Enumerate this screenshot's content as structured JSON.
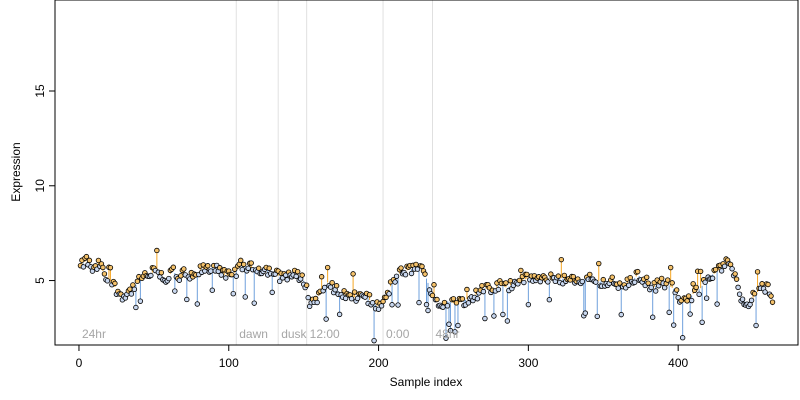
{
  "chart_data": {
    "type": "scatter",
    "title": "",
    "xlabel": "Sample index",
    "ylabel": "Expression",
    "xlim": [
      -16,
      480
    ],
    "ylim": [
      1.6,
      19.8
    ],
    "x_ticks": [
      0,
      100,
      200,
      300,
      400
    ],
    "y_ticks": [
      5,
      10,
      15
    ],
    "grid": false,
    "colors": {
      "above_baseline_stem": "#f5a623",
      "below_baseline_stem": "#6fa0dc",
      "above_point_fill": "#f5c26b",
      "below_point_fill": "#c9d8f0",
      "point_outline": "#000000",
      "separator": "#e0e0e0",
      "region_label": "#a6a6a6"
    },
    "regions": [
      {
        "label": "24hr",
        "start": 0
      },
      {
        "label": "dawn",
        "start": 105
      },
      {
        "label": "dusk",
        "start": 133
      },
      {
        "label": "12:00",
        "start": 152
      },
      {
        "label": "0:00",
        "start": 203
      },
      {
        "label": "48hr",
        "start": 236
      }
    ],
    "series": [
      {
        "anchors": [
          [
            1,
            5.7
          ],
          [
            5,
            6.1
          ],
          [
            10,
            5.5
          ],
          [
            14,
            5.9
          ],
          [
            18,
            5.1
          ],
          [
            22,
            4.9
          ],
          [
            27,
            4.3
          ],
          [
            31,
            4.2
          ],
          [
            36,
            4.6
          ],
          [
            42,
            5.1
          ],
          [
            47,
            5.3
          ],
          [
            52,
            5.6
          ],
          [
            58,
            5.0
          ],
          [
            63,
            5.6
          ],
          [
            66,
            5.0
          ],
          [
            70,
            5.4
          ],
          [
            76,
            5.1
          ],
          [
            82,
            5.6
          ],
          [
            87,
            5.6
          ],
          [
            92,
            5.8
          ],
          [
            97,
            5.3
          ],
          [
            102,
            5.2
          ],
          [
            108,
            5.8
          ],
          [
            113,
            5.7
          ],
          [
            118,
            5.6
          ],
          [
            124,
            5.6
          ],
          [
            129,
            5.5
          ],
          [
            134,
            5.2
          ],
          [
            138,
            5.3
          ],
          [
            143,
            5.3
          ],
          [
            148,
            5.2
          ],
          [
            151,
            4.9
          ],
          [
            154,
            3.8
          ],
          [
            158,
            4.0
          ],
          [
            162,
            4.4
          ],
          [
            166,
            4.9
          ],
          [
            170,
            4.6
          ],
          [
            176,
            4.3
          ],
          [
            180,
            4.2
          ],
          [
            185,
            4.1
          ],
          [
            190,
            4.3
          ],
          [
            195,
            3.9
          ],
          [
            200,
            3.6
          ],
          [
            204,
            3.9
          ],
          [
            208,
            4.7
          ],
          [
            212,
            5.3
          ],
          [
            217,
            5.5
          ],
          [
            222,
            5.6
          ],
          [
            227,
            5.8
          ],
          [
            232,
            5.1
          ],
          [
            236,
            4.2
          ],
          [
            241,
            3.7
          ],
          [
            246,
            3.9
          ],
          [
            251,
            3.8
          ],
          [
            256,
            3.9
          ],
          [
            261,
            4.1
          ],
          [
            266,
            4.3
          ],
          [
            271,
            4.6
          ],
          [
            276,
            4.4
          ],
          [
            281,
            4.8
          ],
          [
            286,
            4.6
          ],
          [
            291,
            5.0
          ],
          [
            296,
            5.0
          ],
          [
            302,
            5.2
          ],
          [
            308,
            5.0
          ],
          [
            313,
            5.0
          ],
          [
            318,
            5.2
          ],
          [
            323,
            5.1
          ],
          [
            328,
            5.0
          ],
          [
            333,
            4.9
          ],
          [
            338,
            5.1
          ],
          [
            344,
            5.1
          ],
          [
            349,
            4.9
          ],
          [
            354,
            5.0
          ],
          [
            359,
            4.8
          ],
          [
            363,
            4.7
          ],
          [
            368,
            4.9
          ],
          [
            373,
            5.3
          ],
          [
            378,
            5.0
          ],
          [
            383,
            4.6
          ],
          [
            388,
            4.9
          ],
          [
            393,
            4.8
          ],
          [
            398,
            4.5
          ],
          [
            402,
            3.8
          ],
          [
            406,
            3.9
          ],
          [
            410,
            4.3
          ],
          [
            415,
            4.6
          ],
          [
            420,
            5.2
          ],
          [
            425,
            5.4
          ],
          [
            429,
            5.7
          ],
          [
            434,
            6.0
          ],
          [
            438,
            5.3
          ],
          [
            442,
            4.1
          ],
          [
            446,
            3.8
          ],
          [
            450,
            4.1
          ],
          [
            455,
            4.6
          ],
          [
            460,
            4.7
          ],
          [
            463,
            3.7
          ]
        ]
      }
    ]
  }
}
